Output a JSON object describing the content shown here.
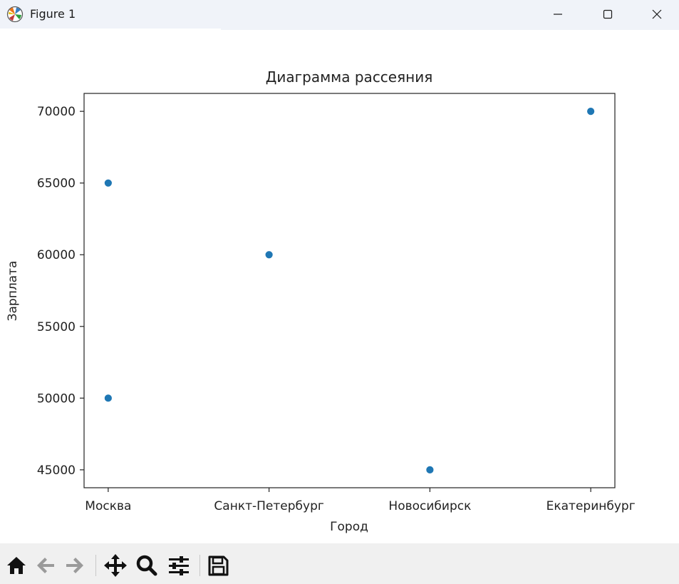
{
  "window": {
    "title": "Figure 1",
    "icons": {
      "app": "matplotlib-icon",
      "minimize": "minimize-icon",
      "maximize": "maximize-icon",
      "close": "close-icon"
    }
  },
  "toolbar": {
    "tools": [
      {
        "name": "home",
        "icon": "home-icon"
      },
      {
        "name": "back",
        "icon": "arrow-left-icon"
      },
      {
        "name": "forward",
        "icon": "arrow-right-icon"
      },
      {
        "name": "pan",
        "icon": "move-icon"
      },
      {
        "name": "zoom",
        "icon": "magnifier-icon"
      },
      {
        "name": "configure",
        "icon": "sliders-icon"
      },
      {
        "name": "save",
        "icon": "floppy-disk-icon"
      }
    ]
  },
  "chart_data": {
    "type": "scatter",
    "title": "Диаграмма рассеяния",
    "xlabel": "Город",
    "ylabel": "Зарплата",
    "categories": [
      "Москва",
      "Санкт-Петербург",
      "Новосибирск",
      "Екатеринбург"
    ],
    "points": [
      {
        "x": "Москва",
        "y": 50000
      },
      {
        "x": "Москва",
        "y": 65000
      },
      {
        "x": "Санкт-Петербург",
        "y": 60000
      },
      {
        "x": "Новосибирск",
        "y": 45000
      },
      {
        "x": "Екатеринбург",
        "y": 70000
      }
    ],
    "yticks": [
      45000,
      50000,
      55000,
      60000,
      65000,
      70000
    ],
    "ylim": [
      43750,
      71250
    ],
    "grid": false,
    "marker_color": "#1f77b4"
  }
}
